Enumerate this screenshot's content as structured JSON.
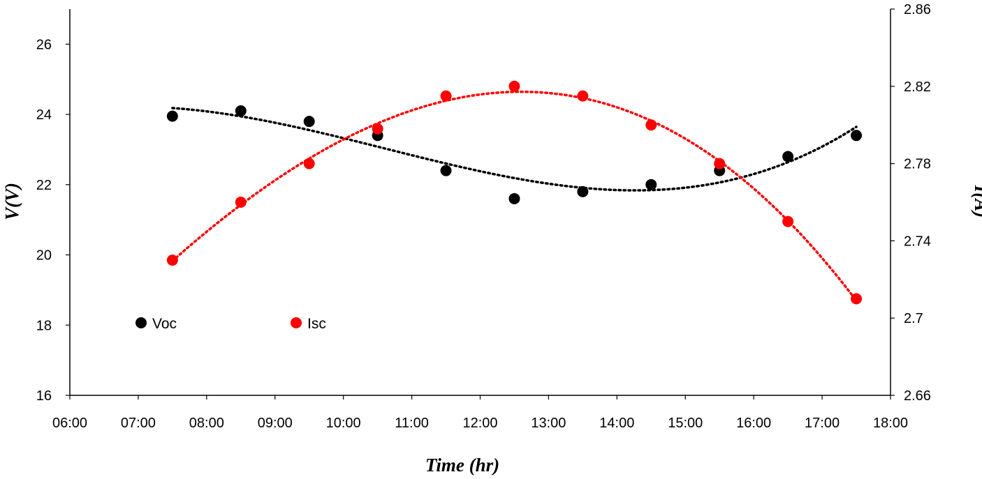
{
  "chart_data": {
    "type": "scatter",
    "xlabel": "Time (hr)",
    "ylabel_left": "V(V)",
    "ylabel_right": "I(A)",
    "x_ticks": [
      "06:00",
      "07:00",
      "08:00",
      "09:00",
      "10:00",
      "11:00",
      "12:00",
      "13:00",
      "14:00",
      "15:00",
      "16:00",
      "17:00",
      "18:00"
    ],
    "x_range_hours": [
      6,
      18
    ],
    "y_left": {
      "ticks": [
        "16",
        "18",
        "20",
        "22",
        "24",
        "26"
      ],
      "range": [
        16,
        27
      ]
    },
    "y_right": {
      "ticks": [
        "2.66",
        "2.7",
        "2.74",
        "2.78",
        "2.82",
        "2.86"
      ],
      "range": [
        2.66,
        2.86
      ]
    },
    "grid": false,
    "legend_position": "lower-left",
    "series": [
      {
        "name": "Voc",
        "axis": "left",
        "color": "#000000",
        "trendline": "polynomial, dotted",
        "x": [
          "07:30",
          "08:30",
          "09:30",
          "10:30",
          "11:30",
          "12:30",
          "13:30",
          "14:30",
          "15:30",
          "16:30",
          "17:30"
        ],
        "values": [
          23.95,
          24.1,
          23.8,
          23.4,
          22.4,
          21.6,
          21.8,
          22.0,
          22.4,
          22.8,
          23.4
        ]
      },
      {
        "name": "Isc",
        "axis": "right",
        "color": "#ff0000",
        "trendline": "polynomial, dotted",
        "x": [
          "07:30",
          "08:30",
          "09:30",
          "10:30",
          "11:30",
          "12:30",
          "13:30",
          "14:30",
          "15:30",
          "16:30",
          "17:30"
        ],
        "values": [
          2.73,
          2.76,
          2.78,
          2.798,
          2.815,
          2.82,
          2.815,
          2.8,
          2.78,
          2.75,
          2.71
        ]
      }
    ]
  }
}
